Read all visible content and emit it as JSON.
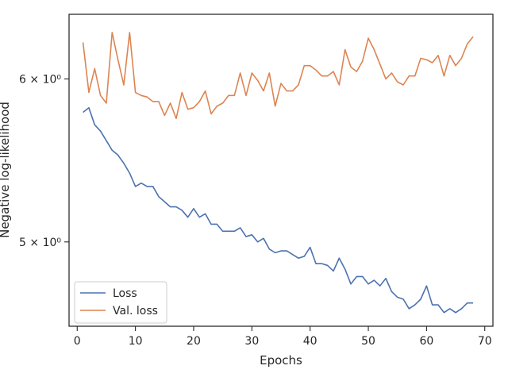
{
  "chart_data": {
    "type": "line",
    "title": "",
    "xlabel": "Epochs",
    "ylabel": "Negative log-likelihood",
    "yscale": "log",
    "xlim": [
      -1.4,
      71.4
    ],
    "ylim": [
      4.55,
      6.45
    ],
    "xticks": [
      0,
      10,
      20,
      30,
      40,
      50,
      60,
      70
    ],
    "yticks": [
      {
        "value": 5,
        "label": "5 × 10⁰"
      },
      {
        "value": 6,
        "label": "6 × 10⁰"
      }
    ],
    "grid": false,
    "legend_position": "lower-left",
    "series": [
      {
        "name": "Loss",
        "color": "#4c72b0",
        "x": [
          1,
          2,
          3,
          4,
          5,
          6,
          7,
          8,
          9,
          10,
          11,
          12,
          13,
          14,
          15,
          16,
          17,
          18,
          19,
          20,
          21,
          22,
          23,
          24,
          25,
          26,
          27,
          28,
          29,
          30,
          31,
          32,
          33,
          34,
          35,
          36,
          37,
          38,
          39,
          40,
          41,
          42,
          43,
          44,
          45,
          46,
          47,
          48,
          49,
          50,
          51,
          52,
          53,
          54,
          55,
          56,
          57,
          58,
          59,
          60,
          61,
          62,
          63,
          64,
          65,
          66,
          67,
          68
        ],
        "values": [
          5.78,
          5.81,
          5.7,
          5.66,
          5.6,
          5.54,
          5.51,
          5.46,
          5.4,
          5.32,
          5.34,
          5.32,
          5.32,
          5.26,
          5.23,
          5.2,
          5.2,
          5.18,
          5.14,
          5.19,
          5.14,
          5.16,
          5.1,
          5.1,
          5.06,
          5.06,
          5.06,
          5.08,
          5.03,
          5.04,
          5.0,
          5.02,
          4.96,
          4.94,
          4.95,
          4.95,
          4.93,
          4.91,
          4.92,
          4.97,
          4.88,
          4.88,
          4.87,
          4.84,
          4.91,
          4.85,
          4.77,
          4.81,
          4.81,
          4.77,
          4.79,
          4.76,
          4.8,
          4.73,
          4.7,
          4.69,
          4.64,
          4.66,
          4.69,
          4.76,
          4.66,
          4.66,
          4.62,
          4.64,
          4.62,
          4.64,
          4.67,
          4.67
        ]
      },
      {
        "name": "Val. loss",
        "color": "#dd8452",
        "x": [
          1,
          2,
          3,
          4,
          5,
          6,
          7,
          8,
          9,
          10,
          11,
          12,
          13,
          14,
          15,
          16,
          17,
          18,
          19,
          20,
          21,
          22,
          23,
          24,
          25,
          26,
          27,
          28,
          29,
          30,
          31,
          32,
          33,
          34,
          35,
          36,
          37,
          38,
          39,
          40,
          41,
          42,
          43,
          44,
          45,
          46,
          47,
          48,
          49,
          50,
          51,
          52,
          53,
          54,
          55,
          56,
          57,
          58,
          59,
          60,
          61,
          62,
          63,
          64,
          65,
          66,
          67,
          68
        ],
        "values": [
          6.25,
          5.91,
          6.07,
          5.89,
          5.84,
          6.32,
          6.13,
          5.96,
          6.32,
          5.91,
          5.89,
          5.88,
          5.85,
          5.85,
          5.76,
          5.84,
          5.74,
          5.91,
          5.8,
          5.81,
          5.85,
          5.92,
          5.77,
          5.82,
          5.84,
          5.89,
          5.89,
          6.04,
          5.89,
          6.04,
          5.99,
          5.92,
          6.04,
          5.82,
          5.97,
          5.92,
          5.92,
          5.96,
          6.09,
          6.09,
          6.06,
          6.02,
          6.02,
          6.05,
          5.96,
          6.2,
          6.08,
          6.05,
          6.12,
          6.28,
          6.2,
          6.1,
          6.0,
          6.04,
          5.98,
          5.96,
          6.02,
          6.02,
          6.14,
          6.13,
          6.11,
          6.16,
          6.02,
          6.16,
          6.09,
          6.14,
          6.24,
          6.29
        ]
      }
    ]
  }
}
